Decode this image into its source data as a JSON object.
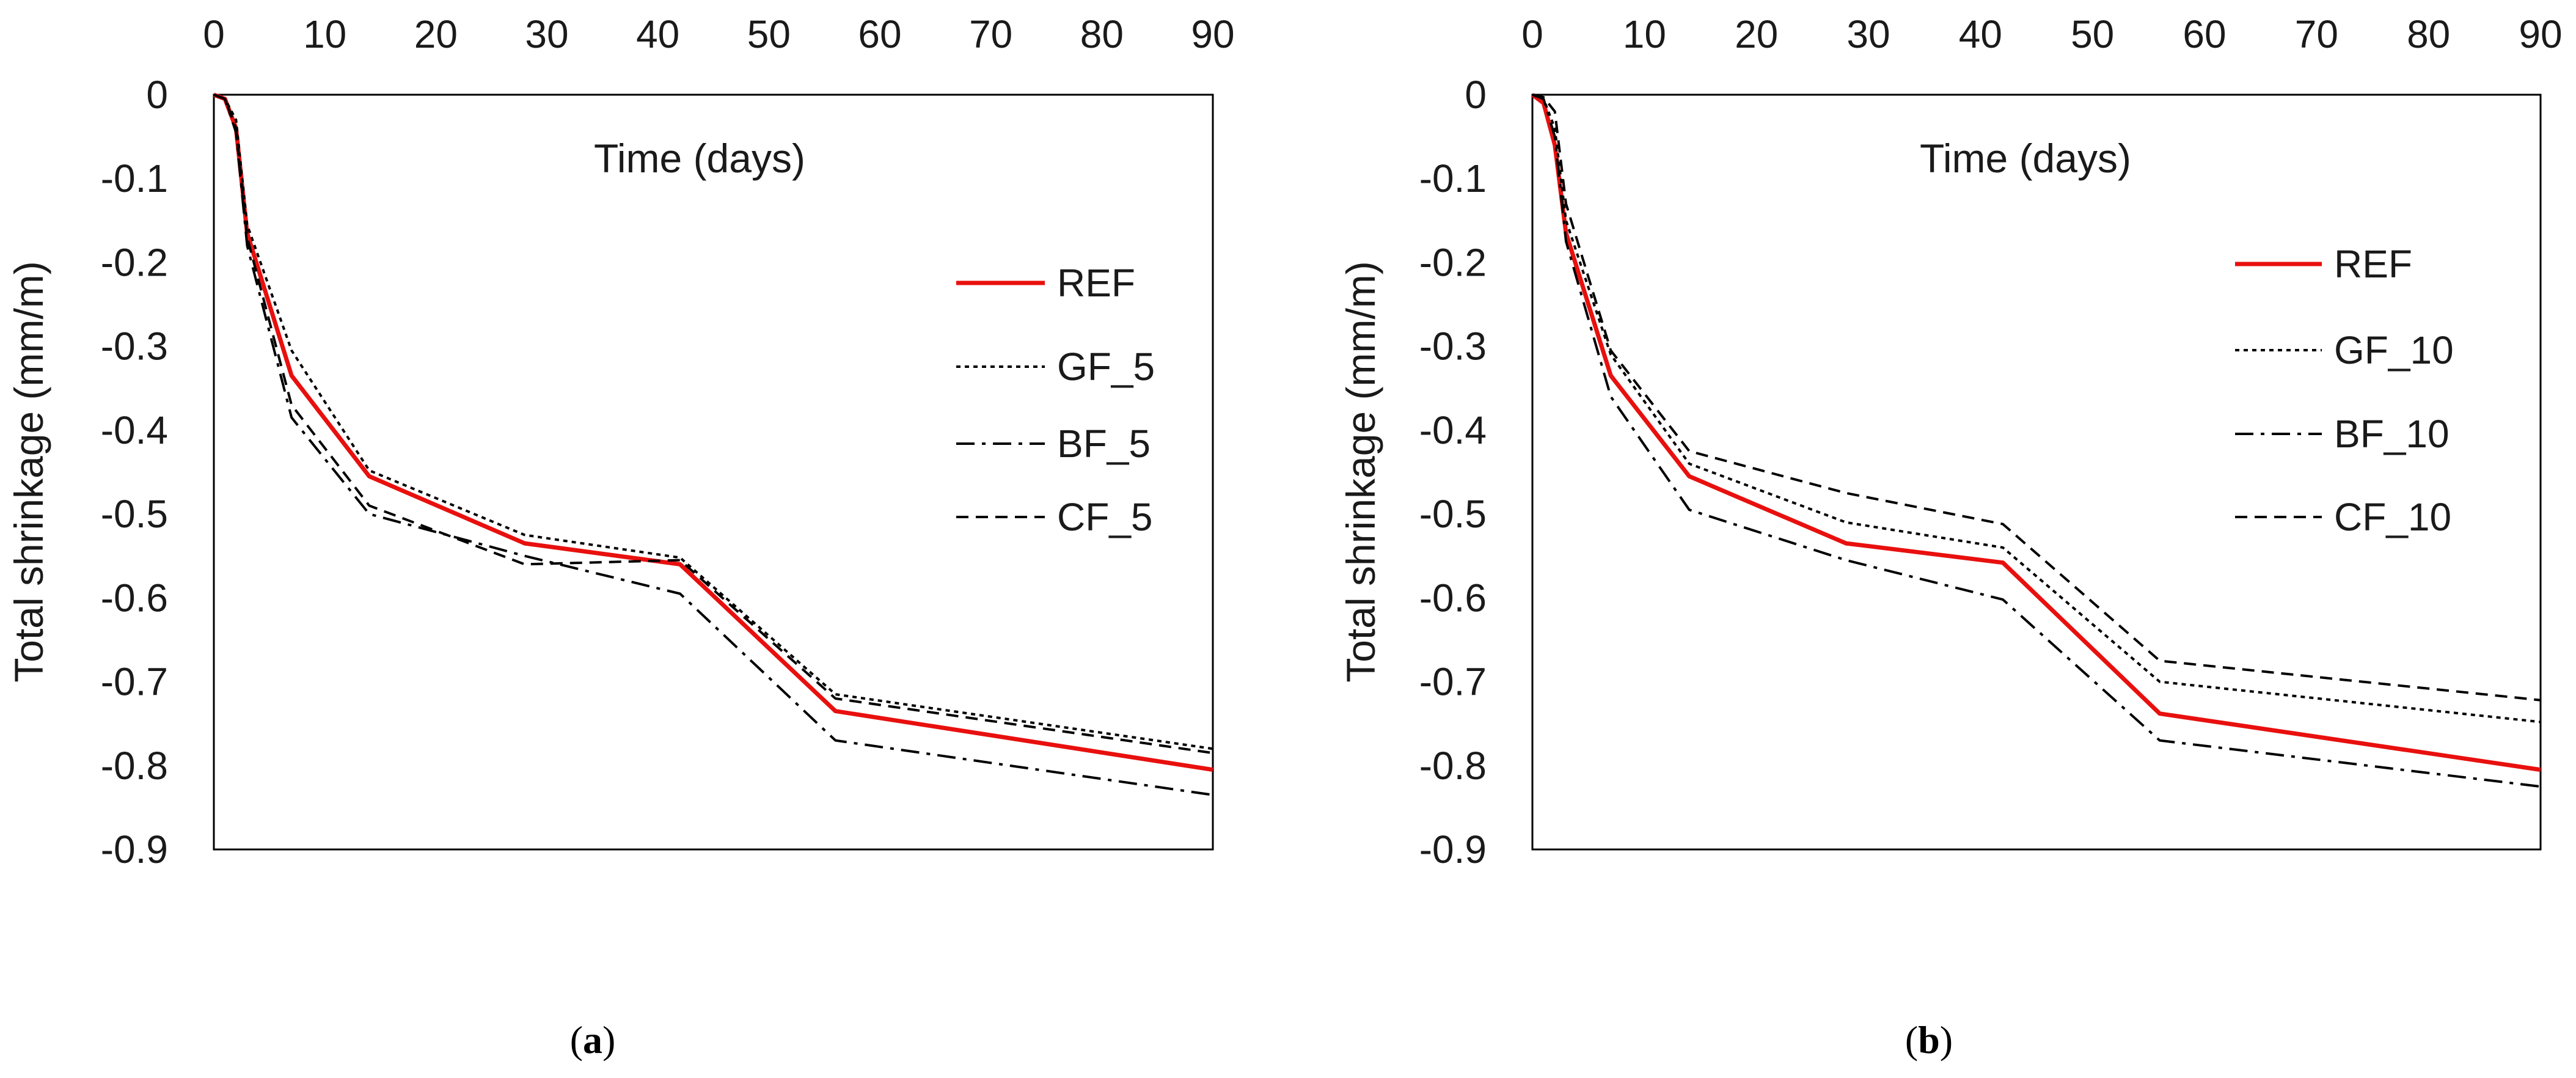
{
  "chart_data": [
    {
      "type": "line",
      "panel": "a",
      "caption_letter": "a",
      "xlabel": "Time (days)",
      "ylabel": "Total shrinkage (mm/m)",
      "xlim": [
        0,
        90
      ],
      "ylim": [
        -0.9,
        0
      ],
      "xticks": [
        0,
        10,
        20,
        30,
        40,
        50,
        60,
        70,
        80,
        90
      ],
      "yticks": [
        0,
        -0.1,
        -0.2,
        -0.3,
        -0.4,
        -0.5,
        -0.6,
        -0.7,
        -0.8,
        -0.9
      ],
      "grid": false,
      "legend_position": "right",
      "series": [
        {
          "name": "REF",
          "style": "solid",
          "color": "#e8100e",
          "x": [
            0,
            1,
            2,
            3,
            7,
            14,
            28,
            42,
            56,
            90
          ],
          "y": [
            0,
            -0.005,
            -0.04,
            -0.165,
            -0.335,
            -0.455,
            -0.535,
            -0.56,
            -0.735,
            -0.805
          ]
        },
        {
          "name": "GF_5",
          "style": "dotted",
          "color": "#000000",
          "x": [
            0,
            1,
            2,
            3,
            7,
            14,
            28,
            42,
            56,
            90
          ],
          "y": [
            0,
            -0.005,
            -0.03,
            -0.155,
            -0.305,
            -0.448,
            -0.525,
            -0.552,
            -0.715,
            -0.78
          ]
        },
        {
          "name": "BF_5",
          "style": "dashdot",
          "color": "#000000",
          "x": [
            0,
            1,
            2,
            3,
            7,
            14,
            28,
            42,
            56,
            90
          ],
          "y": [
            0,
            -0.005,
            -0.045,
            -0.18,
            -0.385,
            -0.5,
            -0.55,
            -0.595,
            -0.77,
            -0.835
          ]
        },
        {
          "name": "CF_5",
          "style": "dashed",
          "color": "#000000",
          "x": [
            0,
            1,
            2,
            3,
            7,
            14,
            28,
            42,
            56,
            90
          ],
          "y": [
            0,
            -0.005,
            -0.04,
            -0.17,
            -0.37,
            -0.49,
            -0.56,
            -0.555,
            -0.72,
            -0.785
          ]
        }
      ]
    },
    {
      "type": "line",
      "panel": "b",
      "caption_letter": "b",
      "xlabel": "Time (days)",
      "ylabel": "Total shrinkage (mm/m)",
      "xlim": [
        0,
        90
      ],
      "ylim": [
        -0.9,
        0
      ],
      "xticks": [
        0,
        10,
        20,
        30,
        40,
        50,
        60,
        70,
        80,
        90
      ],
      "yticks": [
        0,
        -0.1,
        -0.2,
        -0.3,
        -0.4,
        -0.5,
        -0.6,
        -0.7,
        -0.8,
        -0.9
      ],
      "grid": false,
      "legend_position": "right",
      "series": [
        {
          "name": "REF",
          "style": "solid",
          "color": "#e8100e",
          "x": [
            0,
            1,
            2,
            3,
            7,
            14,
            28,
            42,
            56,
            90
          ],
          "y": [
            0,
            -0.01,
            -0.06,
            -0.165,
            -0.335,
            -0.455,
            -0.535,
            -0.558,
            -0.738,
            -0.805
          ]
        },
        {
          "name": "GF_10",
          "style": "dotted",
          "color": "#000000",
          "x": [
            0,
            1,
            2,
            3,
            7,
            14,
            28,
            42,
            56,
            90
          ],
          "y": [
            0,
            -0.005,
            -0.04,
            -0.15,
            -0.31,
            -0.44,
            -0.51,
            -0.54,
            -0.7,
            -0.748
          ]
        },
        {
          "name": "BF_10",
          "style": "dashdot",
          "color": "#000000",
          "x": [
            0,
            1,
            2,
            3,
            7,
            14,
            28,
            42,
            56,
            90
          ],
          "y": [
            0,
            -0.005,
            -0.05,
            -0.175,
            -0.36,
            -0.495,
            -0.555,
            -0.602,
            -0.77,
            -0.825
          ]
        },
        {
          "name": "CF_10",
          "style": "dashed",
          "color": "#000000",
          "x": [
            0,
            1,
            2,
            3,
            7,
            14,
            28,
            42,
            56,
            90
          ],
          "y": [
            0,
            -0.003,
            -0.02,
            -0.13,
            -0.305,
            -0.425,
            -0.475,
            -0.512,
            -0.675,
            -0.722
          ]
        }
      ]
    }
  ]
}
